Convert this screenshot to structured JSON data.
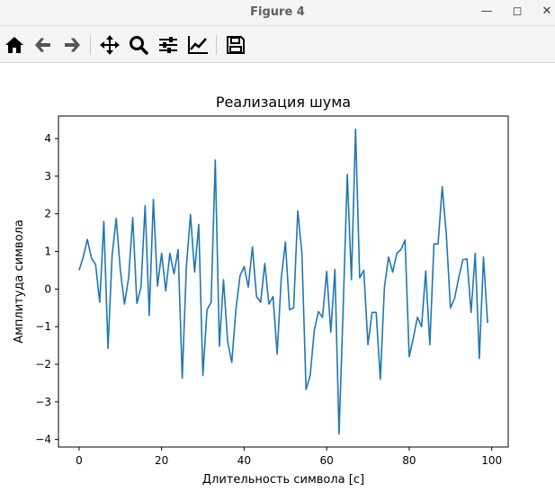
{
  "window": {
    "title": "Figure 4"
  },
  "toolbar": {
    "items": [
      {
        "name": "home",
        "icon": "home-icon"
      },
      {
        "name": "back",
        "icon": "arrow-left-icon"
      },
      {
        "name": "forward",
        "icon": "arrow-right-icon"
      },
      {
        "name": "pan",
        "icon": "move-icon"
      },
      {
        "name": "zoom",
        "icon": "magnifier-icon"
      },
      {
        "name": "configure-subplots",
        "icon": "sliders-icon"
      },
      {
        "name": "edit-axis",
        "icon": "line-chart-icon"
      },
      {
        "name": "save",
        "icon": "floppy-icon"
      }
    ]
  },
  "chart_data": {
    "type": "line",
    "title": "Реализация шума",
    "xlabel": "Длительность символа [с]",
    "ylabel": "Амплитуда символа",
    "xlim": [
      -5,
      104
    ],
    "ylim": [
      -4.2,
      4.6
    ],
    "xticks": [
      0,
      20,
      40,
      60,
      80,
      100
    ],
    "yticks": [
      -4,
      -3,
      -2,
      -1,
      0,
      1,
      2,
      3,
      4
    ],
    "grid": false,
    "color": "#1f77b4",
    "x": [
      0,
      1,
      2,
      3,
      4,
      5,
      6,
      7,
      8,
      9,
      10,
      11,
      12,
      13,
      14,
      15,
      16,
      17,
      18,
      19,
      20,
      21,
      22,
      23,
      24,
      25,
      26,
      27,
      28,
      29,
      30,
      31,
      32,
      33,
      34,
      35,
      36,
      37,
      38,
      39,
      40,
      41,
      42,
      43,
      44,
      45,
      46,
      47,
      48,
      49,
      50,
      51,
      52,
      53,
      54,
      55,
      56,
      57,
      58,
      59,
      60,
      61,
      62,
      63,
      64,
      65,
      66,
      67,
      68,
      69,
      70,
      71,
      72,
      73,
      74,
      75,
      76,
      77,
      78,
      79,
      80,
      81,
      82,
      83,
      84,
      85,
      86,
      87,
      88,
      89,
      90,
      91,
      92,
      93,
      94,
      95,
      96,
      97,
      98,
      99
    ],
    "y": [
      0.5,
      0.85,
      1.32,
      0.82,
      0.65,
      -0.35,
      1.8,
      -1.58,
      0.9,
      1.88,
      0.5,
      -0.4,
      0.3,
      1.9,
      -0.38,
      0.05,
      2.22,
      -0.7,
      2.38,
      0.08,
      0.95,
      -0.05,
      0.95,
      0.4,
      1.05,
      -2.37,
      0.6,
      1.98,
      0.45,
      1.72,
      -2.3,
      -0.55,
      -0.35,
      3.43,
      -1.52,
      0.25,
      -1.4,
      -1.95,
      -0.55,
      0.35,
      0.6,
      0.05,
      1.12,
      -0.2,
      -0.35,
      0.68,
      -0.4,
      -0.2,
      -1.73,
      0.3,
      1.25,
      -0.55,
      -0.5,
      2.08,
      0.95,
      -2.67,
      -2.3,
      -1.1,
      -0.6,
      -0.75,
      0.47,
      -1.15,
      0.52,
      -3.85,
      -0.5,
      3.05,
      0.25,
      4.25,
      0.3,
      0.5,
      -1.48,
      -0.62,
      -0.62,
      -2.4,
      0.05,
      0.85,
      0.45,
      0.95,
      1.05,
      1.3,
      -1.8,
      -1.3,
      -0.75,
      -1.0,
      0.48,
      -1.48,
      1.2,
      1.2,
      2.72,
      1.45,
      -0.5,
      -0.25,
      0.3,
      0.78,
      0.8,
      -0.62,
      0.95,
      -1.85,
      0.85,
      -0.9
    ]
  }
}
